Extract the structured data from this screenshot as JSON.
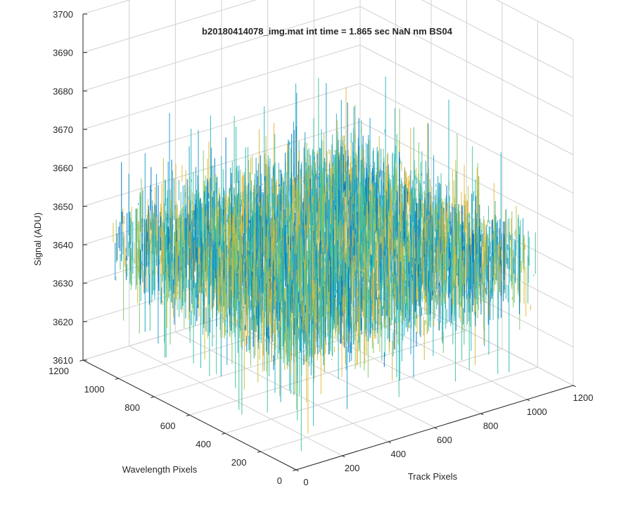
{
  "chart_data": {
    "type": "surface",
    "title": "b20180414078_img.mat int time = 1.865 sec  NaN nm BS04",
    "xlabel": "Track Pixels",
    "ylabel": "Wavelength Pixels",
    "zlabel": "Signal (ADU)",
    "xlim": [
      0,
      1200
    ],
    "ylim": [
      0,
      1200
    ],
    "zlim": [
      3610,
      3700
    ],
    "x_ticks": [
      0,
      200,
      400,
      600,
      800,
      1000,
      1200
    ],
    "y_ticks": [
      0,
      200,
      400,
      600,
      800,
      1000,
      1200
    ],
    "z_ticks": [
      3610,
      3620,
      3630,
      3640,
      3650,
      3660,
      3670,
      3680,
      3690,
      3700
    ],
    "x_tick_labels": [
      "0",
      "200",
      "400",
      "600",
      "800",
      "1000",
      "1200"
    ],
    "y_tick_labels": [
      "0",
      "200",
      "400",
      "600",
      "800",
      "1000",
      "1200"
    ],
    "z_tick_labels": [
      "3610",
      "3620",
      "3630",
      "3640",
      "3650",
      "3660",
      "3670",
      "3680",
      "3690",
      "3700"
    ],
    "data_extent": {
      "x": [
        0,
        1024
      ],
      "y": [
        0,
        1024
      ]
    },
    "signal_mean": 3645,
    "signal_noise_range": [
      3612,
      3688
    ],
    "grid": true,
    "colormap": [
      "#0072bd",
      "#1a9bd0",
      "#25b5c0",
      "#3cc0a0",
      "#7fc66a",
      "#c8bb3a",
      "#e6b73a"
    ]
  }
}
